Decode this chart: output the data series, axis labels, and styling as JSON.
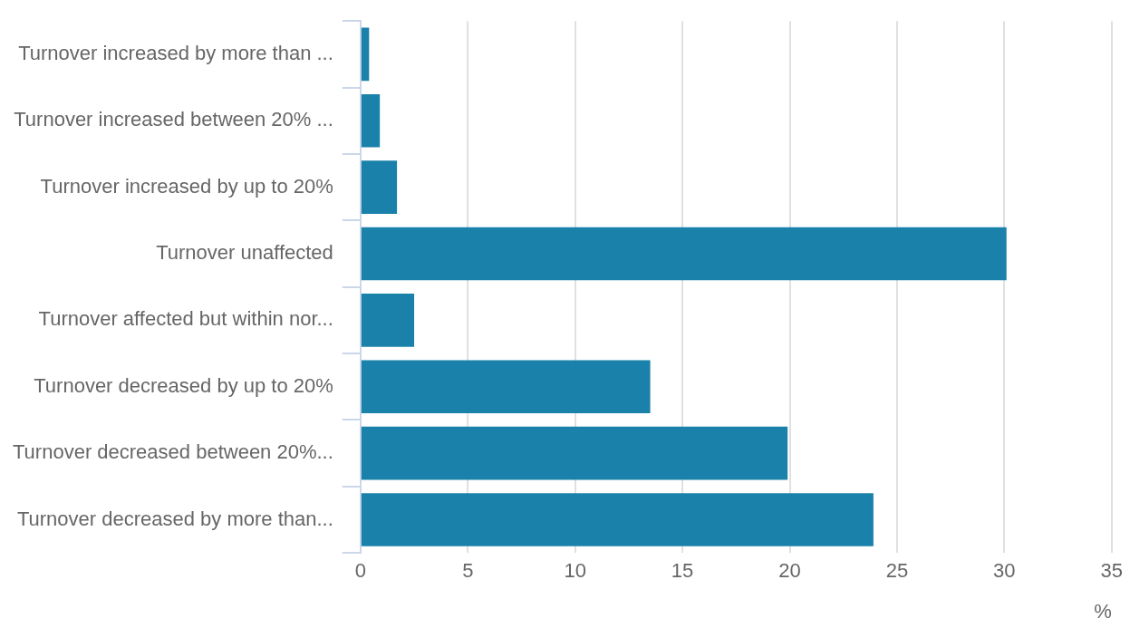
{
  "chart_data": {
    "type": "bar",
    "orientation": "horizontal",
    "categories": [
      "Turnover increased by more than ...",
      "Turnover increased between 20% ...",
      "Turnover increased by up to 20%",
      "Turnover unaffected",
      "Turnover affected but within nor...",
      "Turnover decreased by up to 20%",
      "Turnover decreased between 20%...",
      "Turnover decreased by more than..."
    ],
    "values": [
      0.4,
      0.9,
      1.7,
      30.1,
      2.5,
      13.5,
      19.9,
      23.9
    ],
    "color": "#1a82aa",
    "xlim": [
      0,
      35
    ],
    "xticks": [
      0,
      5,
      10,
      15,
      20,
      25,
      30,
      35
    ],
    "xlabel": "%",
    "grid": "x",
    "legend": false
  }
}
